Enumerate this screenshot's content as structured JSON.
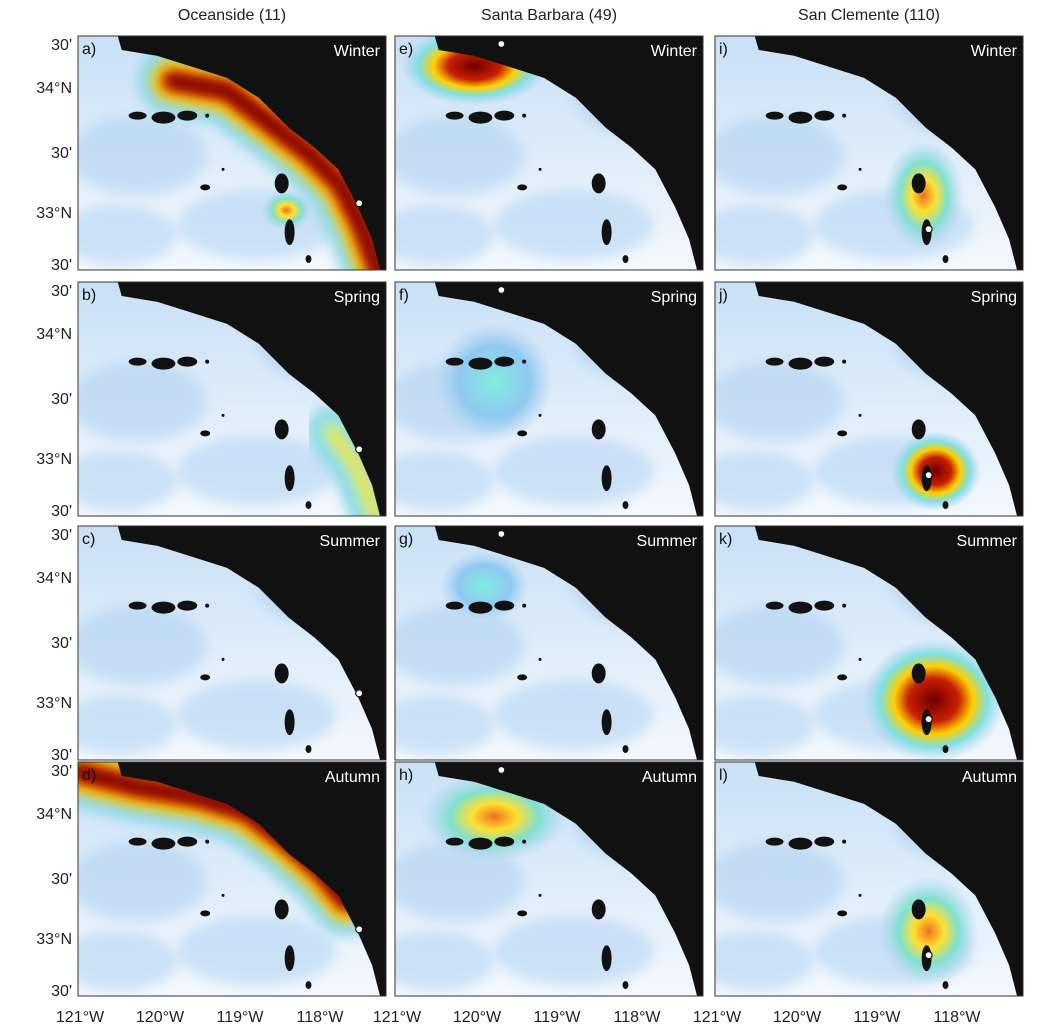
{
  "columns": [
    "Oceanside (11)",
    "Santa Barbara (49)",
    "San Clemente (110)"
  ],
  "panels": [
    [
      {
        "label": "a)",
        "season": "Winter"
      },
      {
        "label": "b)",
        "season": "Spring"
      },
      {
        "label": "c)",
        "season": "Summer"
      },
      {
        "label": "d)",
        "season": "Autumn"
      }
    ],
    [
      {
        "label": "e)",
        "season": "Winter"
      },
      {
        "label": "f)",
        "season": "Spring"
      },
      {
        "label": "g)",
        "season": "Summer"
      },
      {
        "label": "h)",
        "season": "Autumn"
      }
    ],
    [
      {
        "label": "i)",
        "season": "Winter"
      },
      {
        "label": "j)",
        "season": "Spring"
      },
      {
        "label": "k)",
        "season": "Summer"
      },
      {
        "label": "l)",
        "season": "Autumn"
      }
    ]
  ],
  "y_labels": [
    [
      "30'",
      "34°N",
      "30'",
      "33°N",
      "30'"
    ],
    [
      "30'",
      "34°N",
      "30'",
      "33°N",
      "30'"
    ],
    [
      "30'",
      "34°N",
      "30'",
      "33°N",
      "30'"
    ],
    [
      "30'",
      "34°N",
      "30'",
      "33°N",
      "30'"
    ]
  ],
  "x_labels": [
    [
      "121°W",
      "120°W",
      "119°W",
      "118°W"
    ],
    [
      "121°W",
      "120°W",
      "119°W",
      "118°W"
    ],
    [
      "121°W",
      "120°W",
      "119°W",
      "118°W"
    ]
  ]
}
